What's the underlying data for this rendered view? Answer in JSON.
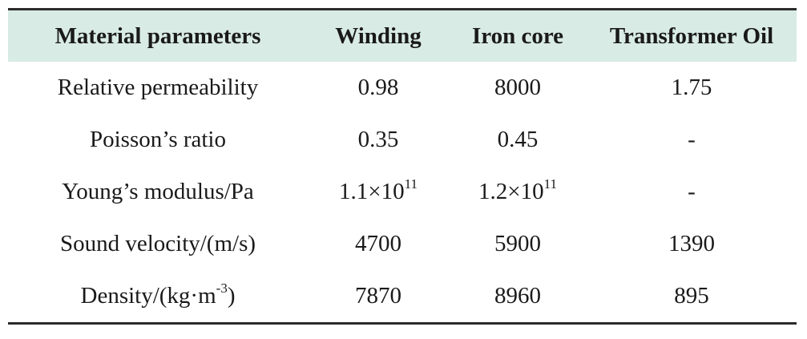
{
  "headers": {
    "col1": "Material parameters",
    "col2": "Winding",
    "col3": "Iron core",
    "col4": "Transformer Oil"
  },
  "rows": [
    {
      "label": "Relative permeability",
      "winding": "0.98",
      "iron": "8000",
      "oil": "1.75"
    },
    {
      "label": "Poisson’s ratio",
      "winding": "0.35",
      "iron": "0.45",
      "oil": "-"
    },
    {
      "label": "Young’s modulus/Pa",
      "winding_base": "1.1×10",
      "winding_exp": "11",
      "iron_base": "1.2×10",
      "iron_exp": "11",
      "oil": "-"
    },
    {
      "label": "Sound velocity/(m/s)",
      "winding": "4700",
      "iron": "5900",
      "oil": "1390"
    },
    {
      "label_base": "Density/(kg·m",
      "label_exp": "-3",
      "label_tail": ")",
      "winding": "7870",
      "iron": "8960",
      "oil": "895"
    }
  ],
  "colors": {
    "header_background": "#d9ebe5",
    "rule": "#2b2b2b",
    "text": "#1a1a1a"
  }
}
